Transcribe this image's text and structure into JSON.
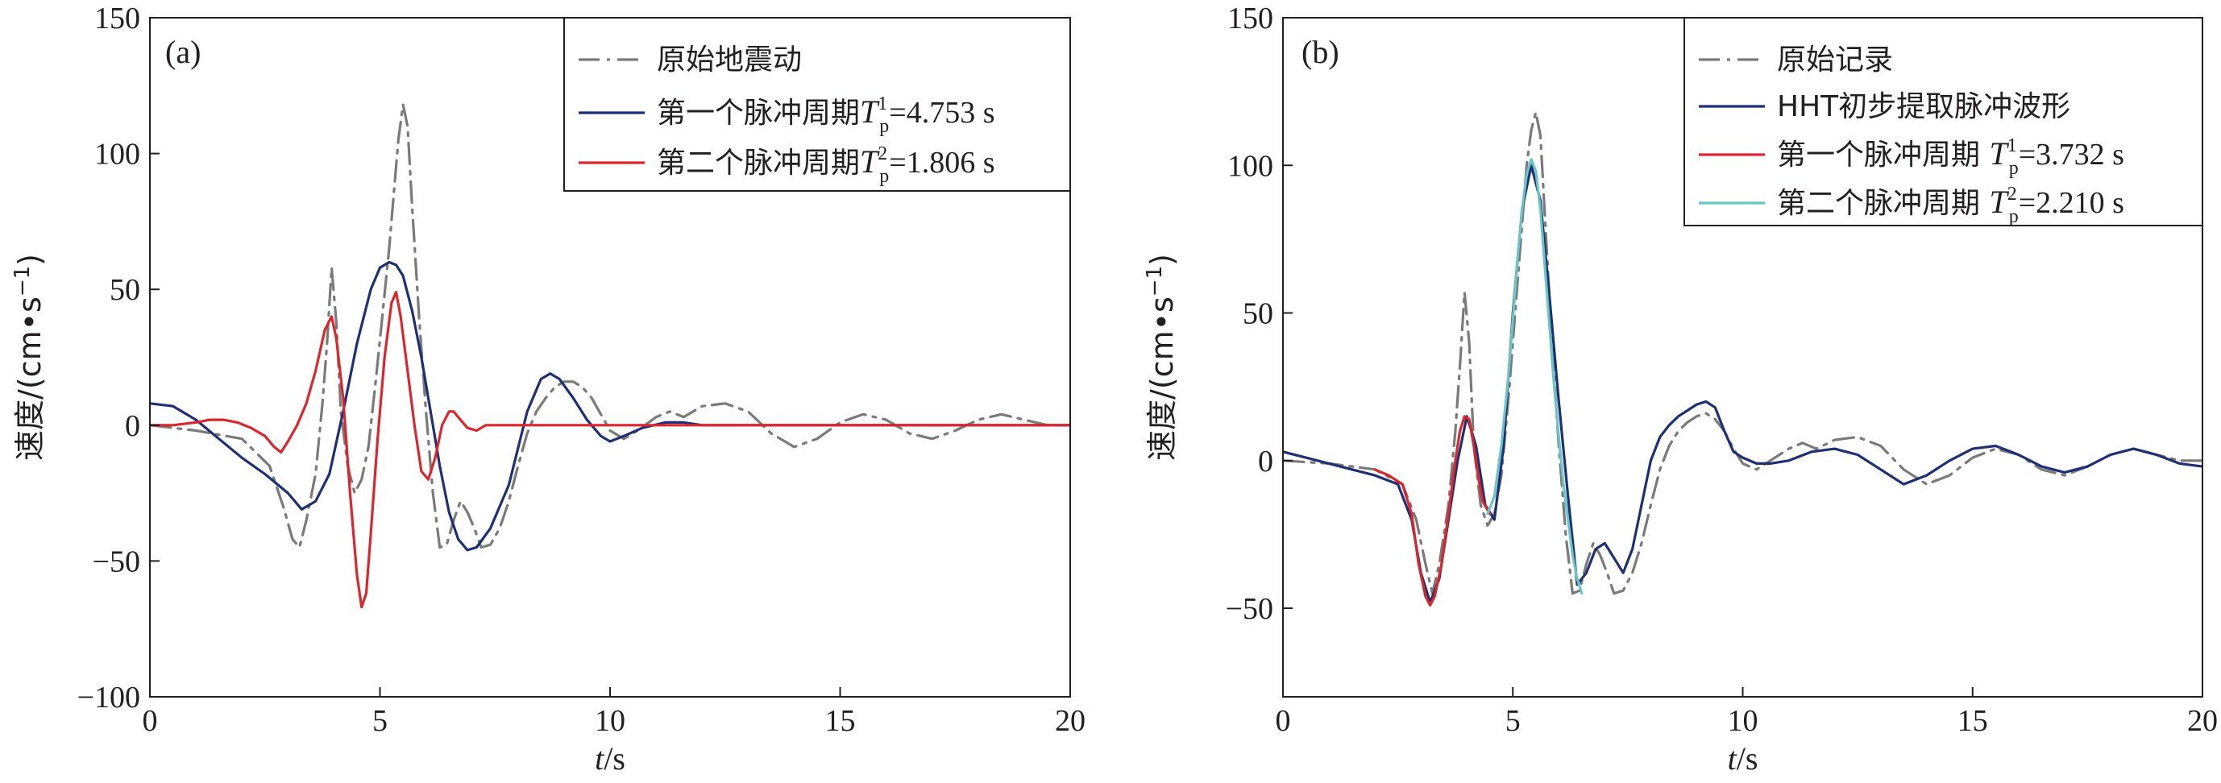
{
  "chart_data": [
    {
      "type": "line",
      "panel_label": "(a)",
      "xlabel_var": "t",
      "xlabel_unit": "s",
      "ylabel": "速度/(cm•s",
      "ylabel_exp": "−1",
      "ylabel_close": ")",
      "xlim": [
        0,
        20
      ],
      "ylim": [
        -100,
        150
      ],
      "xticks": [
        0,
        5,
        10,
        15,
        20
      ],
      "xtick_labels": [
        "0",
        "5",
        "10",
        "15",
        "20"
      ],
      "yticks": [
        150,
        100,
        50,
        0,
        -50,
        -100
      ],
      "ytick_labels": [
        "150",
        "100",
        "50",
        "0",
        "−50",
        "−100"
      ],
      "grid": false,
      "legend_position": "top-right",
      "series": [
        {
          "name": "原始地震动",
          "color": "#7a7a7a",
          "dash": "dashdot",
          "legend": {
            "text": "原始地震动"
          },
          "x": [
            0,
            1,
            2,
            2.6,
            2.9,
            3.1,
            3.25,
            3.4,
            3.6,
            3.75,
            3.85,
            3.95,
            4.05,
            4.15,
            4.3,
            4.45,
            4.6,
            4.75,
            4.9,
            5.05,
            5.2,
            5.3,
            5.4,
            5.5,
            5.6,
            5.7,
            5.85,
            6.0,
            6.15,
            6.3,
            6.45,
            6.6,
            6.75,
            6.9,
            7.05,
            7.2,
            7.4,
            7.6,
            7.8,
            8.0,
            8.2,
            8.4,
            8.6,
            8.8,
            9.0,
            9.2,
            9.4,
            9.6,
            9.8,
            10.0,
            10.3,
            10.6,
            11.0,
            11.3,
            11.6,
            12.0,
            12.5,
            13.0,
            13.5,
            14.0,
            14.5,
            15.0,
            15.5,
            16.0,
            16.5,
            17.0,
            17.5,
            18.0,
            18.5,
            19.0,
            19.5,
            20.0
          ],
          "y": [
            0,
            -2,
            -5,
            -15,
            -30,
            -42,
            -45,
            -35,
            -18,
            8,
            30,
            58,
            38,
            5,
            -15,
            -25,
            -20,
            -8,
            15,
            40,
            65,
            85,
            105,
            118,
            110,
            80,
            40,
            5,
            -25,
            -45,
            -44,
            -35,
            -28,
            -32,
            -38,
            -45,
            -44,
            -38,
            -28,
            -15,
            -3,
            5,
            10,
            14,
            16,
            16,
            14,
            10,
            4,
            -2,
            -5,
            -2,
            3,
            5,
            3,
            7,
            8,
            5,
            -3,
            -8,
            -5,
            1,
            4,
            2,
            -3,
            -5,
            -2,
            2,
            4,
            2,
            0,
            0
          ]
        },
        {
          "name": "第一个脉冲周期",
          "color": "#1f2f74",
          "dash": "solid",
          "legend": {
            "text": "第一个脉冲周期",
            "var": "T",
            "sub": "p",
            "sup": "1",
            "value": "=4.753 s"
          },
          "x": [
            0,
            0.5,
            1,
            1.5,
            2,
            2.5,
            3,
            3.3,
            3.6,
            3.9,
            4.2,
            4.5,
            4.8,
            5.0,
            5.2,
            5.35,
            5.5,
            5.7,
            5.9,
            6.1,
            6.3,
            6.5,
            6.7,
            6.9,
            7.1,
            7.4,
            7.8,
            8.2,
            8.5,
            8.7,
            8.9,
            9.2,
            9.5,
            9.8,
            10.0,
            10.3,
            10.7,
            11.2,
            11.6,
            12.0,
            12.5,
            13,
            14,
            15,
            16,
            17,
            18,
            19,
            20
          ],
          "y": [
            8,
            7,
            2,
            -5,
            -12,
            -18,
            -25,
            -31,
            -28,
            -18,
            5,
            30,
            50,
            58,
            60,
            59,
            55,
            42,
            25,
            5,
            -15,
            -32,
            -42,
            -46,
            -45,
            -38,
            -22,
            5,
            17,
            19,
            17,
            10,
            2,
            -4,
            -6,
            -4,
            -1,
            1,
            1,
            0,
            0,
            0,
            0,
            0,
            0,
            0,
            0,
            0,
            0
          ]
        },
        {
          "name": "第二个脉冲周期",
          "color": "#d9272e",
          "dash": "solid",
          "legend": {
            "text": "第二个脉冲周期",
            "var": "T",
            "sub": "p",
            "sup": "2",
            "value": "=1.806 s"
          },
          "x": [
            0,
            0.5,
            1,
            1.3,
            1.6,
            1.9,
            2.2,
            2.5,
            2.7,
            2.85,
            3.0,
            3.2,
            3.4,
            3.6,
            3.8,
            3.95,
            4.05,
            4.2,
            4.35,
            4.5,
            4.6,
            4.7,
            4.8,
            4.95,
            5.1,
            5.25,
            5.35,
            5.45,
            5.6,
            5.75,
            5.9,
            6.05,
            6.2,
            6.35,
            6.5,
            6.6,
            6.75,
            6.9,
            7.1,
            7.3,
            7.6,
            8,
            9,
            10,
            11,
            12,
            13,
            14,
            15,
            16,
            17,
            18,
            19,
            20
          ],
          "y": [
            0,
            0,
            1,
            2,
            2,
            1,
            -1,
            -4,
            -8,
            -10,
            -6,
            0,
            8,
            20,
            35,
            40,
            32,
            10,
            -25,
            -55,
            -67,
            -62,
            -40,
            -5,
            25,
            45,
            49,
            40,
            20,
            0,
            -17,
            -20,
            -12,
            0,
            5,
            5,
            2,
            -1,
            -2,
            0,
            0,
            0,
            0,
            0,
            0,
            0,
            0,
            0,
            0,
            0,
            0,
            0,
            0,
            0
          ]
        }
      ]
    },
    {
      "type": "line",
      "panel_label": "(b)",
      "xlabel_var": "t",
      "xlabel_unit": "s",
      "ylabel": "速度/(cm•s",
      "ylabel_exp": "−1",
      "ylabel_close": ")",
      "xlim": [
        0,
        20
      ],
      "ylim": [
        -80,
        150
      ],
      "xticks": [
        0,
        5,
        10,
        15,
        20
      ],
      "xtick_labels": [
        "0",
        "5",
        "10",
        "15",
        "20"
      ],
      "yticks": [
        150,
        100,
        50,
        0,
        -50
      ],
      "ytick_labels": [
        "150",
        "100",
        "50",
        "0",
        "−50"
      ],
      "grid": false,
      "legend_position": "top-right",
      "series": [
        {
          "name": "原始记录",
          "color": "#7a7a7a",
          "dash": "dashdot",
          "legend": {
            "text": "原始记录"
          },
          "x": [
            0,
            1,
            2,
            2.6,
            2.9,
            3.1,
            3.25,
            3.4,
            3.6,
            3.75,
            3.85,
            3.95,
            4.05,
            4.15,
            4.3,
            4.45,
            4.6,
            4.75,
            4.9,
            5.05,
            5.2,
            5.3,
            5.4,
            5.5,
            5.6,
            5.7,
            5.85,
            6.0,
            6.15,
            6.3,
            6.45,
            6.6,
            6.75,
            6.9,
            7.05,
            7.2,
            7.4,
            7.6,
            7.8,
            8.0,
            8.2,
            8.4,
            8.6,
            8.8,
            9.0,
            9.2,
            9.4,
            9.6,
            9.8,
            10.0,
            10.3,
            10.6,
            11.0,
            11.3,
            11.6,
            12.0,
            12.5,
            13.0,
            13.5,
            14.0,
            14.5,
            15.0,
            15.5,
            16.0,
            16.5,
            17.0,
            17.5,
            18.0,
            18.5,
            19.0,
            19.5,
            20.0
          ],
          "y": [
            0,
            -1,
            -3,
            -8,
            -20,
            -35,
            -45,
            -35,
            -15,
            10,
            32,
            57,
            40,
            5,
            -15,
            -22,
            -18,
            -5,
            20,
            50,
            80,
            100,
            112,
            118,
            110,
            82,
            40,
            5,
            -25,
            -45,
            -44,
            -35,
            -28,
            -32,
            -38,
            -45,
            -44,
            -38,
            -28,
            -15,
            -3,
            5,
            10,
            13,
            15,
            16,
            14,
            10,
            4,
            -1,
            -3,
            0,
            4,
            6,
            4,
            7,
            8,
            5,
            -3,
            -8,
            -5,
            1,
            4,
            2,
            -3,
            -5,
            -2,
            2,
            4,
            2,
            0,
            0
          ]
        },
        {
          "name": "HHT初步提取脉冲波形",
          "color": "#1f2f74",
          "dash": "solid",
          "legend": {
            "text": "HHT初步提取脉冲波形"
          },
          "x": [
            0,
            0.5,
            1,
            1.5,
            2,
            2.5,
            2.8,
            3.0,
            3.2,
            3.4,
            3.6,
            3.8,
            4.0,
            4.2,
            4.4,
            4.6,
            4.8,
            5.0,
            5.2,
            5.4,
            5.6,
            5.8,
            6.0,
            6.2,
            6.4,
            6.6,
            6.8,
            7.0,
            7.2,
            7.4,
            7.6,
            7.8,
            8.0,
            8.2,
            8.4,
            8.6,
            8.8,
            9.0,
            9.2,
            9.4,
            9.6,
            9.8,
            10.0,
            10.3,
            10.6,
            11.0,
            11.5,
            12.0,
            12.5,
            13.0,
            13.5,
            14.0,
            14.5,
            15.0,
            15.5,
            16.0,
            16.5,
            17.0,
            17.5,
            18.0,
            18.5,
            19.0,
            19.5,
            20.0
          ],
          "y": [
            3,
            1,
            -1,
            -3,
            -5,
            -8,
            -20,
            -38,
            -48,
            -40,
            -20,
            0,
            15,
            5,
            -15,
            -20,
            5,
            50,
            85,
            100,
            88,
            55,
            20,
            -12,
            -42,
            -38,
            -30,
            -28,
            -33,
            -38,
            -30,
            -15,
            0,
            8,
            12,
            15,
            17,
            19,
            20,
            18,
            10,
            3,
            1,
            -1,
            -1,
            0,
            3,
            4,
            2,
            -3,
            -8,
            -5,
            0,
            4,
            5,
            2,
            -2,
            -4,
            -2,
            2,
            4,
            2,
            -1,
            -2
          ]
        },
        {
          "name": "第一个脉冲周期",
          "color": "#d9272e",
          "dash": "solid",
          "legend": {
            "text": "第一个脉冲周期 ",
            "var": "T",
            "sub": "p",
            "sup": "1",
            "value": "=3.732 s"
          },
          "x": [
            2.0,
            2.3,
            2.6,
            2.8,
            2.95,
            3.1,
            3.2,
            3.3,
            3.45,
            3.6,
            3.75,
            3.85,
            3.95,
            4.05,
            4.15,
            4.25,
            4.35,
            4.5
          ],
          "y": [
            -3,
            -5,
            -8,
            -18,
            -35,
            -46,
            -49,
            -46,
            -35,
            -18,
            0,
            10,
            15,
            14,
            5,
            -6,
            -14,
            -18
          ]
        },
        {
          "name": "第二个脉冲周期",
          "color": "#6ac6c4",
          "dash": "solid",
          "legend": {
            "text": "第二个脉冲周期 ",
            "var": "T",
            "sub": "p",
            "sup": "2",
            "value": "=2.210 s"
          },
          "x": [
            4.45,
            4.6,
            4.75,
            4.9,
            5.0,
            5.1,
            5.2,
            5.3,
            5.4,
            5.5,
            5.6,
            5.7,
            5.8,
            5.9,
            6.0,
            6.1,
            6.2,
            6.3,
            6.4,
            6.5
          ],
          "y": [
            -18,
            -12,
            5,
            28,
            48,
            68,
            85,
            97,
            102,
            98,
            85,
            65,
            45,
            25,
            8,
            -8,
            -20,
            -32,
            -40,
            -45
          ]
        }
      ]
    }
  ]
}
